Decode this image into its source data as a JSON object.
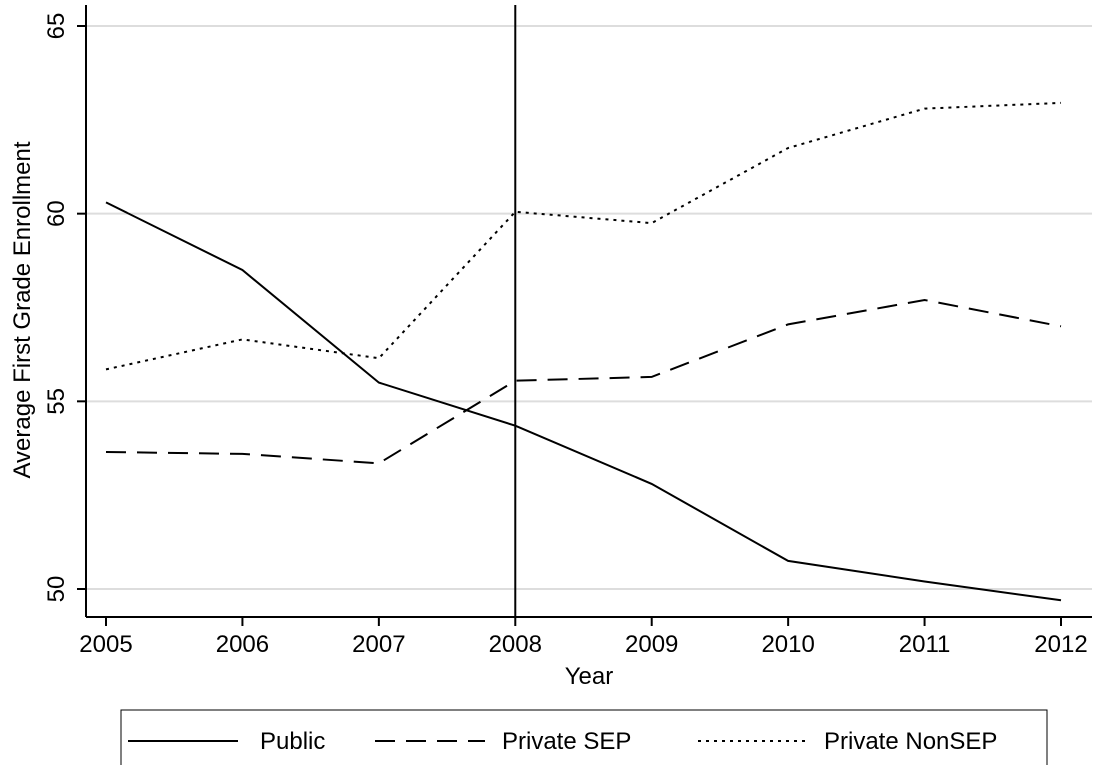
{
  "chart_data": {
    "type": "line",
    "title": "",
    "xlabel": "Year",
    "ylabel": "Average First Grade Enrollment",
    "x": [
      2005,
      2006,
      2007,
      2008,
      2009,
      2010,
      2011,
      2012
    ],
    "xlim": [
      2005,
      2012
    ],
    "ylim": [
      49.3,
      65.5
    ],
    "y_ticks": [
      50,
      55,
      60,
      65
    ],
    "grid": true,
    "legend_position": "bottom",
    "reference_line": {
      "axis": "x",
      "value": 2008
    },
    "series": [
      {
        "name": "Public",
        "style": "solid",
        "values": [
          60.3,
          58.5,
          55.5,
          54.35,
          52.8,
          50.75,
          50.2,
          49.7
        ]
      },
      {
        "name": "Private SEP",
        "style": "dashed",
        "values": [
          53.65,
          53.6,
          53.35,
          55.55,
          55.65,
          57.05,
          57.7,
          57.0
        ]
      },
      {
        "name": "Private NonSEP",
        "style": "dotted",
        "values": [
          55.85,
          56.65,
          56.15,
          60.05,
          59.75,
          61.75,
          62.8,
          62.95
        ]
      }
    ]
  },
  "colors": {
    "line": "#000000",
    "grid": "#dddddd",
    "background": "#ffffff"
  }
}
